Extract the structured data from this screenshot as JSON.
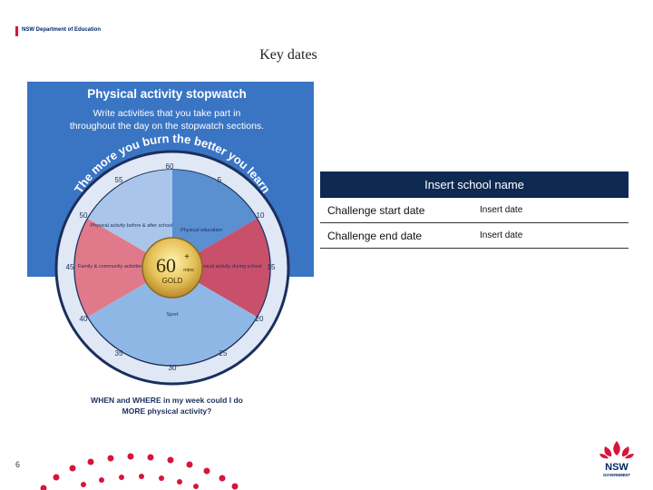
{
  "header": {
    "department": "NSW Department of Education"
  },
  "slide": {
    "title": "Key dates",
    "page_number": "6"
  },
  "poster": {
    "heading": "Physical activity stopwatch",
    "subheading_line1": "Write activities that you take part in",
    "subheading_line2": "throughout the day on the stopwatch sections.",
    "arc_text": "The more you burn the better you learn",
    "minute_marks": [
      "60",
      "5",
      "10",
      "15",
      "20",
      "25",
      "30",
      "35",
      "40",
      "45",
      "50",
      "55"
    ],
    "segments": {
      "before_after_school": "Physical activity before & after school",
      "physical_education": "Physical education",
      "family_community": "Family & community activities",
      "during_school": "Physical activity during school",
      "sport": "Sport"
    },
    "centre_badge": {
      "number": "60",
      "plus": "+",
      "unit": "mins",
      "label": "GOLD"
    },
    "footer_line1": "WHEN and WHERE in my week could I do",
    "footer_line2": "MORE physical activity?"
  },
  "table": {
    "header": "Insert school name",
    "rows": [
      {
        "label": "Challenge start date",
        "value": "Insert date"
      },
      {
        "label": "Challenge end date",
        "value": "Insert date"
      }
    ]
  },
  "logo": {
    "text1": "NSW",
    "text2": "GOVERNMENT"
  },
  "colors": {
    "nsw_navy": "#002664",
    "nsw_red": "#d7153a",
    "poster_blue": "#3a75c4",
    "table_header": "#0f2a52"
  }
}
